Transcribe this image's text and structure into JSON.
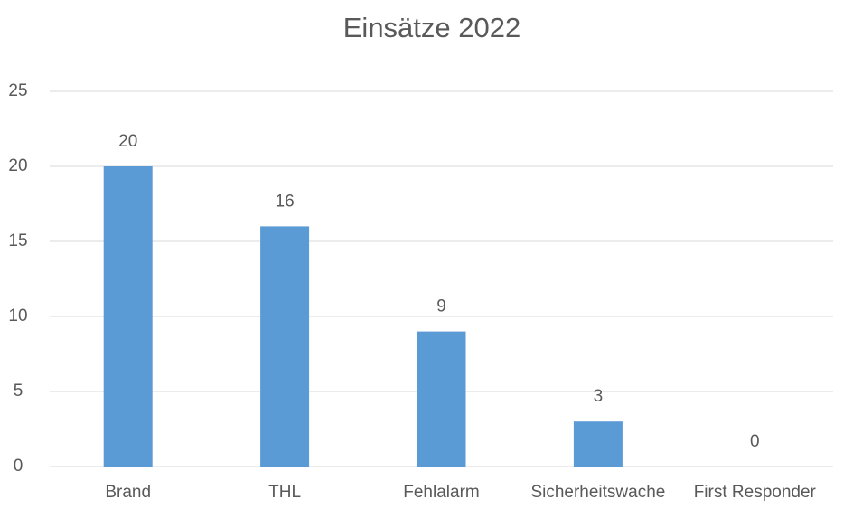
{
  "chart_data": {
    "type": "bar",
    "title": "Einsätze 2022",
    "categories": [
      "Brand",
      "THL",
      "Fehlalarm",
      "Sicherheitswache",
      "First Responder"
    ],
    "values": [
      20,
      16,
      9,
      3,
      0
    ],
    "color": "#5b9bd5",
    "ylim": [
      0,
      25
    ],
    "yticks": [
      0,
      5,
      10,
      15,
      20,
      25
    ],
    "grid": true
  }
}
